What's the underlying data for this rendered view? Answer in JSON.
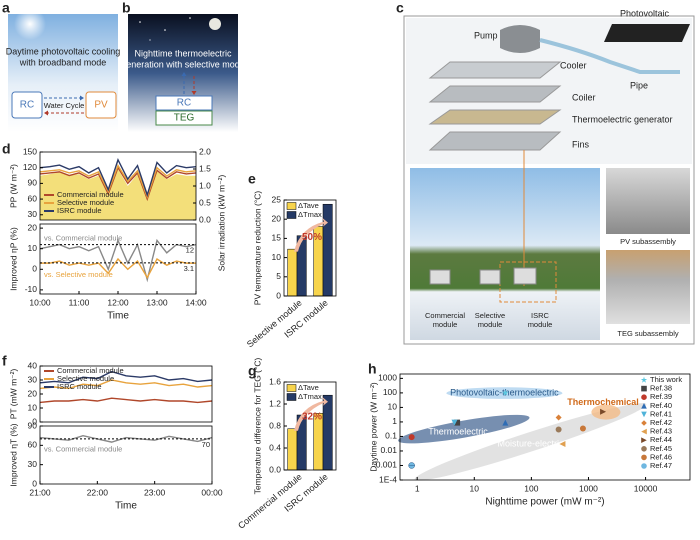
{
  "panels": [
    {
      "label": "a",
      "title": [
        "Daytime photovoltaic cooling",
        "with broadband mode"
      ],
      "boxes": [
        "RC",
        "PV"
      ],
      "arrow_label": "Water Cycle"
    },
    {
      "label": "b",
      "title": [
        "Nighttime thermoelectric",
        "generation with selective  mode"
      ],
      "boxes": [
        "RC",
        "TEG"
      ]
    },
    {
      "label": "c",
      "parts": [
        "Pump",
        "Photovoltaic",
        "Cooler",
        "Pipe",
        "Coiler",
        "Thermoelectric generator",
        "Fins"
      ],
      "photo_labels": [
        [
          "Commercial",
          "module"
        ],
        [
          "Selective",
          "module"
        ],
        [
          "ISRC",
          "module"
        ]
      ],
      "sub_labels": [
        "PV subassembly",
        "TEG subassembly"
      ]
    }
  ],
  "chart_data": [
    {
      "type": "line",
      "panel": "d",
      "ylabel": "PP (W m⁻²)",
      "y2label": "Solar irradiation (kW m⁻²)",
      "x": [
        10,
        10.25,
        10.5,
        10.75,
        11,
        11.25,
        11.5,
        11.75,
        12,
        12.25,
        12.5,
        12.75,
        13,
        13.25,
        13.5,
        13.75,
        14
      ],
      "xlim": [
        10,
        14
      ],
      "ylim": [
        20,
        150
      ],
      "yticks": [
        30,
        60,
        90,
        120,
        150
      ],
      "y2lim": [
        0,
        2
      ],
      "y2ticks": [
        {
          "value": 0,
          "label": "0.0"
        },
        0.5,
        {
          "value": 1,
          "label": "1.0"
        },
        1.5,
        {
          "value": 2,
          "label": "2.0"
        }
      ],
      "legend": "lower left",
      "series": [
        {
          "axis": "y2",
          "color": "#f3df7a",
          "values": [
            1.3,
            1.35,
            1.4,
            1.3,
            1.35,
            1.2,
            1.3,
            0.8,
            1.5,
            1.0,
            1.35,
            0.6,
            1.45,
            1.2,
            1.35,
            1.3,
            1.3
          ]
        },
        {
          "name": "Commercial module",
          "color": "#b0472a",
          "values": [
            108,
            110,
            112,
            105,
            110,
            100,
            108,
            70,
            120,
            90,
            110,
            60,
            115,
            100,
            112,
            108,
            110
          ]
        },
        {
          "name": "Selective module",
          "color": "#e8a33d",
          "values": [
            112,
            114,
            116,
            110,
            114,
            104,
            112,
            74,
            124,
            94,
            114,
            64,
            120,
            104,
            116,
            112,
            114
          ]
        },
        {
          "name": "ISRC module",
          "color": "#2b3a67",
          "values": [
            120,
            122,
            125,
            117,
            122,
            110,
            120,
            78,
            135,
            98,
            124,
            68,
            130,
            110,
            124,
            120,
            122
          ]
        }
      ]
    },
    {
      "type": "line",
      "ylabel": "Improved ηP (%)",
      "xlabel": "Time",
      "x": [
        10,
        10.25,
        10.5,
        10.75,
        11,
        11.25,
        11.5,
        11.75,
        12,
        12.25,
        12.5,
        12.75,
        13,
        13.25,
        13.5,
        13.75,
        14
      ],
      "xlim": [
        10,
        14
      ],
      "xticks": [
        {
          "value": 10,
          "label": "10:00"
        },
        {
          "value": 11,
          "label": "11:00"
        },
        {
          "value": 12,
          "label": "12:00"
        },
        {
          "value": 13,
          "label": "13:00"
        },
        {
          "value": 14,
          "label": "14:00"
        }
      ],
      "ylim": [
        -12,
        22
      ],
      "yticks": [
        -10,
        0,
        10,
        20
      ],
      "legend": "inline",
      "ref_lines": [
        12,
        3.1
      ],
      "series": [
        {
          "name": "vs. Commercial module",
          "color": "#888888",
          "values": [
            10,
            11,
            12,
            10,
            11,
            9,
            11,
            0,
            14,
            3,
            12,
            -5,
            14,
            8,
            12,
            11,
            12
          ]
        },
        {
          "name": "vs. Selective module",
          "color": "#e8a33d",
          "values": [
            3,
            3,
            4,
            2,
            3,
            2,
            3,
            -2,
            5,
            0,
            4,
            -4,
            5,
            2,
            4,
            3,
            3
          ]
        }
      ]
    },
    {
      "type": "bar",
      "panel": "e",
      "ylabel": "PV temperature reduction (°C)",
      "categories": [
        "Selective module",
        "ISRC module"
      ],
      "ylim": [
        0,
        25
      ],
      "yticks": [
        0,
        5,
        10,
        15,
        20,
        25
      ],
      "legend": "upper left",
      "annotation": "50%",
      "series": [
        {
          "name": "ΔTave",
          "color": "#f7d44c",
          "values": [
            12.2,
            18.1
          ]
        },
        {
          "name": "ΔTmax",
          "color": "#253a66",
          "values": [
            15.7,
            23.9
          ]
        }
      ]
    },
    {
      "type": "line",
      "panel": "f",
      "ylabel": "PT (mW m⁻²)",
      "x": [
        21,
        21.25,
        21.5,
        21.75,
        22,
        22.25,
        22.5,
        22.75,
        23,
        23.25,
        23.5,
        23.75,
        24
      ],
      "xlim": [
        21,
        24
      ],
      "ylim": [
        0,
        40
      ],
      "yticks": [
        0,
        10,
        20,
        30,
        40
      ],
      "legend": "upper left",
      "series": [
        {
          "name": "Commercial module",
          "color": "#b0472a",
          "values": [
            14,
            15,
            15,
            16,
            15,
            17,
            16,
            15,
            16,
            15,
            15,
            14,
            15
          ]
        },
        {
          "name": "Selective module",
          "color": "#e8a33d",
          "values": [
            24,
            25,
            24,
            27,
            26,
            30,
            28,
            27,
            28,
            26,
            27,
            25,
            26
          ]
        },
        {
          "name": "ISRC module",
          "color": "#2b3a67",
          "values": [
            28,
            29,
            28,
            32,
            31,
            36,
            33,
            32,
            33,
            30,
            31,
            29,
            30
          ]
        }
      ]
    },
    {
      "type": "line",
      "ylabel": "Improved ηT (%)",
      "xlabel": "Time",
      "x": [
        21,
        21.25,
        21.5,
        21.75,
        22,
        22.25,
        22.5,
        22.75,
        23,
        23.25,
        23.5,
        23.75,
        24
      ],
      "xlim": [
        21,
        24
      ],
      "xticks": [
        {
          "value": 21,
          "label": "21:00"
        },
        {
          "value": 22,
          "label": "22:00"
        },
        {
          "value": 23,
          "label": "23:00"
        },
        {
          "value": 24,
          "label": "00:00"
        }
      ],
      "ylim": [
        0,
        90
      ],
      "yticks": [
        0,
        30,
        60,
        90
      ],
      "legend": "inline-below",
      "ref_lines": [
        70
      ],
      "series": [
        {
          "name": "vs. Commercial module",
          "color": "#888888",
          "values": [
            72,
            70,
            68,
            75,
            70,
            65,
            72,
            70,
            68,
            74,
            70,
            66,
            72
          ]
        }
      ]
    },
    {
      "type": "bar",
      "panel": "g",
      "ylabel": "Temperature difference for TEG (°C)",
      "categories": [
        "Commercial module",
        "ISRC module"
      ],
      "ylim": [
        0,
        1.6
      ],
      "yticks": [
        {
          "value": 0,
          "label": "0.0"
        },
        0.4,
        0.8,
        1.2,
        1.6
      ],
      "legend": "upper left",
      "annotation": "32%",
      "series": [
        {
          "name": "ΔTave",
          "color": "#f7d44c",
          "values": [
            0.75,
            1.03
          ]
        },
        {
          "name": "ΔTmax",
          "color": "#253a66",
          "values": [
            1.0,
            1.36
          ]
        }
      ]
    },
    {
      "type": "scatter",
      "panel": "h",
      "xlabel": "Nighttime power (mW m⁻²)",
      "ylabel": "Daytime power (W m⁻²)",
      "xlog": true,
      "ylog": true,
      "xlim": [
        0.5,
        60000
      ],
      "ylim": [
        0.0001,
        2000
      ],
      "xticks": [
        1,
        10,
        100,
        1000,
        10000
      ],
      "yticks": [
        {
          "value": 0.0001,
          "label": "1E-4"
        },
        0.001,
        0.01,
        0.1,
        1,
        10,
        100,
        1000
      ],
      "legend": "upper right",
      "region_labels": [
        "Photovoltaic-thermoelectric",
        "Thermoelectric",
        "Thermochemical",
        "Moisture-electric"
      ],
      "series": [
        {
          "name": "This work",
          "color": "#5bc8e0",
          "marker": "star",
          "x": [
            35
          ],
          "values": [
            100
          ]
        },
        {
          "name": "Ref.38",
          "color": "#444444",
          "marker": "square",
          "x": [
            5
          ],
          "values": [
            0.9
          ]
        },
        {
          "name": "Ref.39",
          "color": "#c0392b",
          "marker": "circle",
          "x": [
            0.8
          ],
          "values": [
            0.09
          ]
        },
        {
          "name": "Ref.40",
          "color": "#2f6db5",
          "marker": "up",
          "x": [
            35
          ],
          "values": [
            0.9
          ]
        },
        {
          "name": "Ref.41",
          "color": "#4fb3d9",
          "marker": "down",
          "x": [
            4.5
          ],
          "values": [
            0.9
          ]
        },
        {
          "name": "Ref.42",
          "color": "#d9813a",
          "marker": "diamond",
          "x": [
            300
          ],
          "values": [
            2
          ]
        },
        {
          "name": "Ref.43",
          "color": "#e0a050",
          "marker": "left",
          "x": [
            350
          ],
          "values": [
            0.03
          ]
        },
        {
          "name": "Ref.44",
          "color": "#7a4a2a",
          "marker": "right",
          "x": [
            1800
          ],
          "values": [
            5
          ]
        },
        {
          "name": "Ref.45",
          "color": "#9a7a5a",
          "marker": "circle",
          "x": [
            300
          ],
          "values": [
            0.3
          ]
        },
        {
          "name": "Ref.46",
          "color": "#c8783a",
          "marker": "circle",
          "x": [
            800
          ],
          "values": [
            0.35
          ]
        },
        {
          "name": "Ref.47",
          "color": "#6fb7e0",
          "marker": "half",
          "x": [
            0.8
          ],
          "values": [
            0.001
          ]
        }
      ]
    }
  ]
}
